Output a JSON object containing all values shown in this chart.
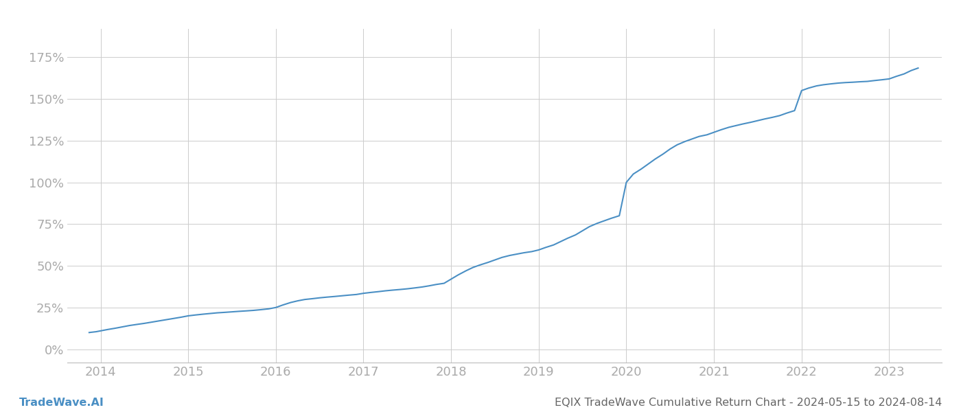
{
  "title_left": "TradeWave.AI",
  "title_right": "EQIX TradeWave Cumulative Return Chart - 2024-05-15 to 2024-08-14",
  "line_color": "#4a8fc4",
  "background_color": "#ffffff",
  "grid_color": "#cccccc",
  "x_ticks": [
    2014,
    2015,
    2016,
    2017,
    2018,
    2019,
    2020,
    2021,
    2022,
    2023
  ],
  "y_ticks": [
    0,
    25,
    50,
    75,
    100,
    125,
    150,
    175
  ],
  "data_x": [
    2013.87,
    2013.95,
    2014.0,
    2014.08,
    2014.17,
    2014.25,
    2014.33,
    2014.42,
    2014.5,
    2014.58,
    2014.67,
    2014.75,
    2014.83,
    2014.92,
    2015.0,
    2015.08,
    2015.17,
    2015.25,
    2015.33,
    2015.42,
    2015.5,
    2015.58,
    2015.67,
    2015.75,
    2015.83,
    2015.92,
    2016.0,
    2016.08,
    2016.17,
    2016.25,
    2016.33,
    2016.42,
    2016.5,
    2016.58,
    2016.67,
    2016.75,
    2016.83,
    2016.92,
    2017.0,
    2017.08,
    2017.17,
    2017.25,
    2017.33,
    2017.42,
    2017.5,
    2017.58,
    2017.67,
    2017.75,
    2017.83,
    2017.92,
    2018.0,
    2018.08,
    2018.17,
    2018.25,
    2018.33,
    2018.42,
    2018.5,
    2018.58,
    2018.67,
    2018.75,
    2018.83,
    2018.92,
    2019.0,
    2019.08,
    2019.17,
    2019.25,
    2019.33,
    2019.42,
    2019.5,
    2019.58,
    2019.67,
    2019.75,
    2019.83,
    2019.92,
    2020.0,
    2020.08,
    2020.17,
    2020.25,
    2020.33,
    2020.42,
    2020.5,
    2020.58,
    2020.67,
    2020.75,
    2020.83,
    2020.92,
    2021.0,
    2021.08,
    2021.17,
    2021.25,
    2021.33,
    2021.42,
    2021.5,
    2021.58,
    2021.67,
    2021.75,
    2021.83,
    2021.92,
    2022.0,
    2022.08,
    2022.17,
    2022.25,
    2022.33,
    2022.42,
    2022.5,
    2022.58,
    2022.67,
    2022.75,
    2022.83,
    2022.92,
    2023.0,
    2023.08,
    2023.17,
    2023.25,
    2023.33
  ],
  "data_y": [
    10.0,
    10.5,
    11.0,
    11.8,
    12.6,
    13.4,
    14.2,
    14.9,
    15.5,
    16.2,
    17.0,
    17.7,
    18.4,
    19.2,
    20.0,
    20.5,
    21.0,
    21.4,
    21.8,
    22.1,
    22.4,
    22.7,
    23.0,
    23.3,
    23.7,
    24.2,
    25.0,
    26.5,
    28.0,
    29.0,
    29.8,
    30.3,
    30.8,
    31.2,
    31.6,
    32.0,
    32.4,
    32.8,
    33.5,
    34.0,
    34.5,
    35.0,
    35.4,
    35.8,
    36.2,
    36.7,
    37.3,
    38.0,
    38.8,
    39.5,
    42.0,
    44.5,
    47.0,
    49.0,
    50.5,
    52.0,
    53.5,
    55.0,
    56.2,
    57.0,
    57.8,
    58.5,
    59.5,
    61.0,
    62.5,
    64.5,
    66.5,
    68.5,
    71.0,
    73.5,
    75.5,
    77.0,
    78.5,
    80.0,
    100.0,
    105.0,
    108.0,
    111.0,
    114.0,
    117.0,
    120.0,
    122.5,
    124.5,
    126.0,
    127.5,
    128.5,
    130.0,
    131.5,
    133.0,
    134.0,
    135.0,
    136.0,
    137.0,
    138.0,
    139.0,
    140.0,
    141.5,
    143.0,
    155.0,
    156.5,
    157.8,
    158.5,
    159.0,
    159.5,
    159.8,
    160.0,
    160.3,
    160.5,
    161.0,
    161.5,
    162.0,
    163.5,
    165.0,
    167.0,
    168.5
  ],
  "xlim": [
    2013.62,
    2023.6
  ],
  "ylim": [
    -8,
    192
  ],
  "line_width": 1.5,
  "tick_color": "#aaaaaa",
  "tick_fontsize": 13,
  "footer_left_color": "#4a8fc4",
  "footer_right_color": "#666666",
  "footer_fontsize": 11.5
}
